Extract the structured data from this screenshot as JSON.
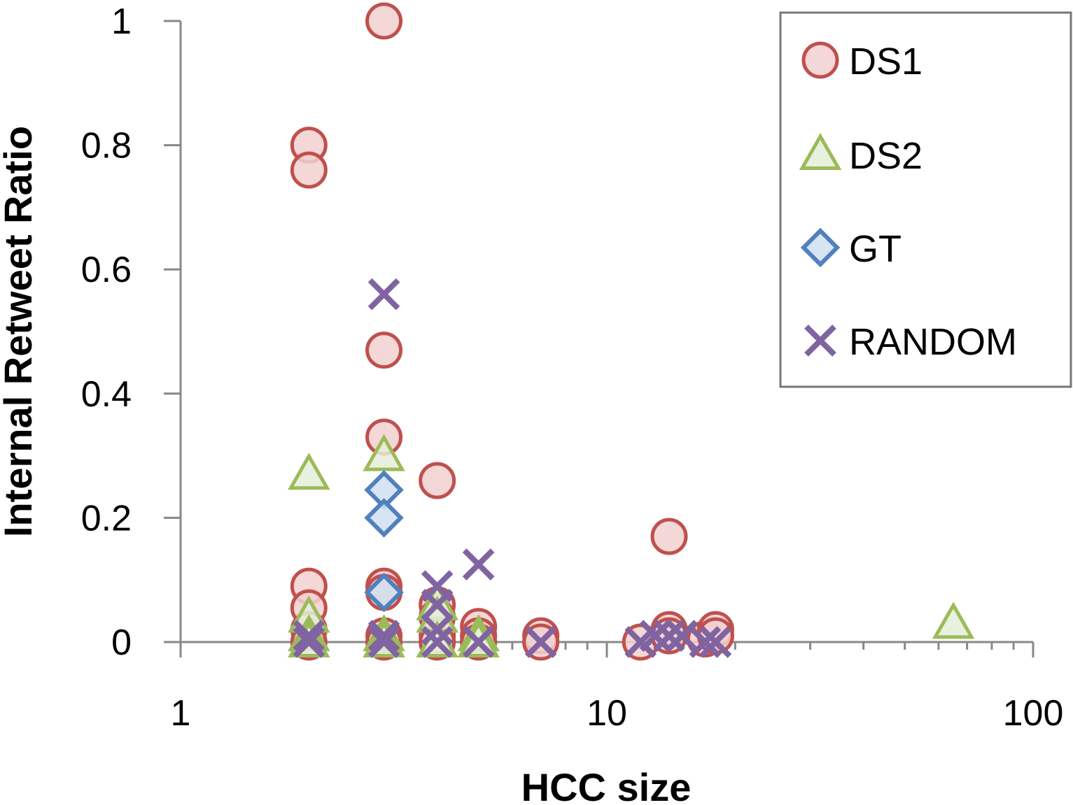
{
  "chart_data": {
    "type": "scatter",
    "title": "",
    "xlabel": "HCC size",
    "ylabel": "Internal Retweet Ratio",
    "xscale": "log",
    "xlim": [
      1,
      100
    ],
    "ylim": [
      0,
      1
    ],
    "x_ticks": [
      "1",
      "10",
      "100"
    ],
    "y_ticks": [
      "0",
      "0.2",
      "0.4",
      "0.6",
      "0.8",
      "1"
    ],
    "legend_position": "top-right",
    "colors": {
      "DS1_stroke": "#c0504d",
      "DS1_fill": "#f2d0d0",
      "DS2_stroke": "#9bbb59",
      "DS2_fill": "#e4efd9",
      "GT_stroke": "#4f81bd",
      "GT_fill": "#d0dff0",
      "RANDOM_stroke": "#8064a2",
      "axis": "#888888"
    },
    "series": [
      {
        "name": "DS1",
        "marker": "circle",
        "points": [
          [
            2,
            0.8
          ],
          [
            2,
            0.76
          ],
          [
            2,
            0.09
          ],
          [
            2,
            0.055
          ],
          [
            2,
            0.02
          ],
          [
            2,
            0
          ],
          [
            3,
            1.0
          ],
          [
            3,
            0.47
          ],
          [
            3,
            0.33
          ],
          [
            3,
            0.09
          ],
          [
            3,
            0.08
          ],
          [
            3,
            0.01
          ],
          [
            3,
            0
          ],
          [
            4,
            0.26
          ],
          [
            4,
            0.06
          ],
          [
            4,
            0.04
          ],
          [
            4,
            0.01
          ],
          [
            4,
            0
          ],
          [
            5,
            0.025
          ],
          [
            5,
            0.01
          ],
          [
            5,
            0
          ],
          [
            7,
            0.01
          ],
          [
            7,
            0
          ],
          [
            12,
            0
          ],
          [
            14,
            0.17
          ],
          [
            14,
            0.02
          ],
          [
            14,
            0.01
          ],
          [
            17,
            0.005
          ],
          [
            18,
            0.02
          ],
          [
            18,
            0.01
          ]
        ]
      },
      {
        "name": "DS2",
        "marker": "triangle",
        "points": [
          [
            2,
            0.27
          ],
          [
            2,
            0.04
          ],
          [
            2,
            0.01
          ],
          [
            2,
            0
          ],
          [
            3,
            0.3
          ],
          [
            3,
            0.01
          ],
          [
            3,
            0
          ],
          [
            4,
            0.06
          ],
          [
            4,
            0.04
          ],
          [
            4,
            0
          ],
          [
            5,
            0.01
          ],
          [
            5,
            0
          ],
          [
            65,
            0.03
          ]
        ]
      },
      {
        "name": "GT",
        "marker": "diamond",
        "points": [
          [
            3,
            0.245
          ],
          [
            3,
            0.2
          ],
          [
            3,
            0.08
          ]
        ]
      },
      {
        "name": "RANDOM",
        "marker": "x",
        "points": [
          [
            2,
            0.01
          ],
          [
            2,
            0
          ],
          [
            3,
            0.56
          ],
          [
            3,
            0.01
          ],
          [
            3,
            0
          ],
          [
            4,
            0.09
          ],
          [
            4,
            0.06
          ],
          [
            4,
            0.02
          ],
          [
            4,
            0
          ],
          [
            5,
            0.125
          ],
          [
            5,
            0
          ],
          [
            7,
            0
          ],
          [
            12,
            0
          ],
          [
            13,
            0.01
          ],
          [
            14,
            0.01
          ],
          [
            15,
            0.01
          ],
          [
            17,
            0
          ],
          [
            18,
            0
          ]
        ]
      }
    ]
  }
}
